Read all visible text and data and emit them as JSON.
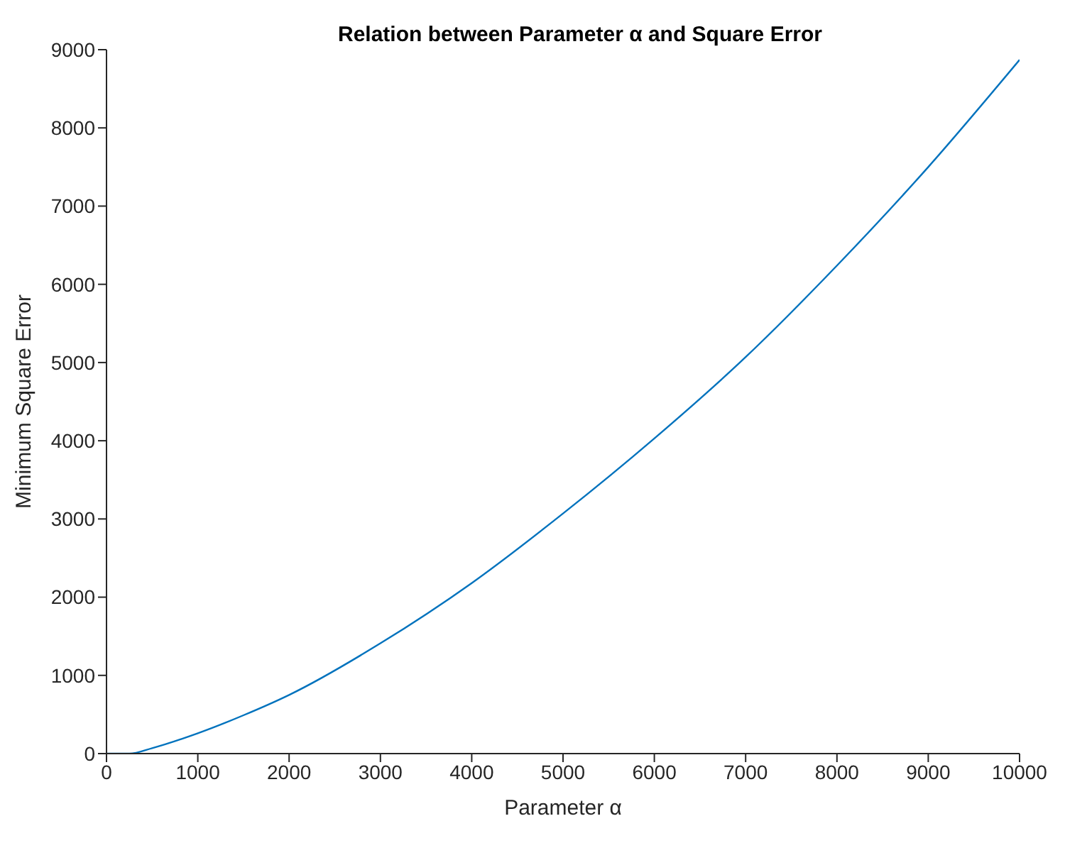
{
  "chart_data": {
    "type": "line",
    "title": "Relation between Parameter α and Square Error",
    "xlabel": "Parameter α",
    "ylabel": "Minimum Square Error",
    "x": [
      0,
      250,
      500,
      1000,
      1500,
      2000,
      3000,
      4000,
      5000,
      6000,
      7000,
      8000,
      9000,
      10000
    ],
    "series": [
      {
        "color": "#0072bd",
        "values": [
          0,
          0,
          70,
          260,
          490,
          750,
          1410,
          2180,
          3070,
          4030,
          5070,
          6240,
          7500,
          8870
        ]
      }
    ],
    "xlim": [
      0,
      10000
    ],
    "xticks": [
      0,
      1000,
      2000,
      3000,
      4000,
      5000,
      6000,
      7000,
      8000,
      9000,
      10000
    ],
    "ylim": [
      0,
      9000
    ],
    "yticks": [
      0,
      1000,
      2000,
      3000,
      4000,
      5000,
      6000,
      7000,
      8000,
      9000
    ],
    "marker": "none",
    "line_style": "solid"
  }
}
